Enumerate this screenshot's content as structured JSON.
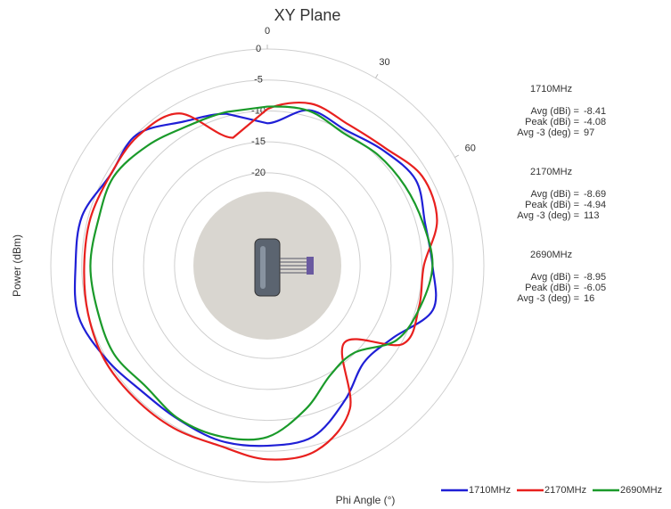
{
  "chart_data": {
    "type": "polar",
    "title": "XY Plane",
    "ylabel": "Power (dBm)",
    "xlabel": "Phi Angle (°)",
    "x": [
      0,
      15,
      30,
      45,
      60,
      75,
      90,
      105,
      120,
      135,
      150,
      165,
      180,
      195,
      210,
      225,
      240,
      255,
      270,
      285,
      300,
      315,
      330,
      345
    ],
    "series": [
      {
        "name": "1710MHz",
        "color": "#1f1fd6",
        "values": [
          -12,
          -9,
          -9.7,
          -8.6,
          -7.3,
          -8.6,
          -8.3,
          -7.3,
          -11.6,
          -12.9,
          -9.9,
          -6.4,
          -5.9,
          -5.7,
          -6.3,
          -6.3,
          -4.9,
          -3.4,
          -4,
          -4,
          -5.7,
          -5.1,
          -8.1,
          -9.6
        ]
      },
      {
        "name": "2170MHz",
        "color": "#e8201e",
        "values": [
          -9.7,
          -7.9,
          -8.7,
          -8.1,
          -6.1,
          -6.6,
          -9.7,
          -9.6,
          -9.7,
          -17.4,
          -8.3,
          -4.1,
          -3.7,
          -4.9,
          -4.7,
          -4.7,
          -4.6,
          -5,
          -5.4,
          -5.4,
          -5.7,
          -5.4,
          -6.6,
          -13.6
        ]
      },
      {
        "name": "2690MHz",
        "color": "#1a9a2a",
        "values": [
          -9.3,
          -9.1,
          -10.3,
          -9.7,
          -9.3,
          -8.9,
          -8.3,
          -9.4,
          -10.9,
          -15.1,
          -14.6,
          -11,
          -7.3,
          -6.4,
          -6.4,
          -7.3,
          -6.4,
          -6.6,
          -6.4,
          -6.7,
          -6.3,
          -7.6,
          -9,
          -9.3
        ]
      }
    ],
    "ylim": [
      -35,
      0
    ],
    "yticks": [
      0,
      -5,
      -10,
      -15,
      -20
    ],
    "xticks": [
      0,
      30,
      60
    ],
    "stats": [
      {
        "name": "1710MHz",
        "rows": [
          {
            "label": "Avg (dBi) =",
            "value": -8.41
          },
          {
            "label": "Peak (dBi) =",
            "value": -4.08
          },
          {
            "label": "Avg -3 (deg) =",
            "value": 97
          }
        ]
      },
      {
        "name": "2170MHz",
        "rows": [
          {
            "label": "Avg (dBi) =",
            "value": -8.69
          },
          {
            "label": "Peak (dBi) =",
            "value": -4.94
          },
          {
            "label": "Avg -3 (deg) =",
            "value": 113
          }
        ]
      },
      {
        "name": "2690MHz",
        "rows": [
          {
            "label": "Avg (dBi) =",
            "value": -8.95
          },
          {
            "label": "Peak (dBi) =",
            "value": -6.05
          },
          {
            "label": "Avg -3 (deg) =",
            "value": 16
          }
        ]
      }
    ]
  }
}
